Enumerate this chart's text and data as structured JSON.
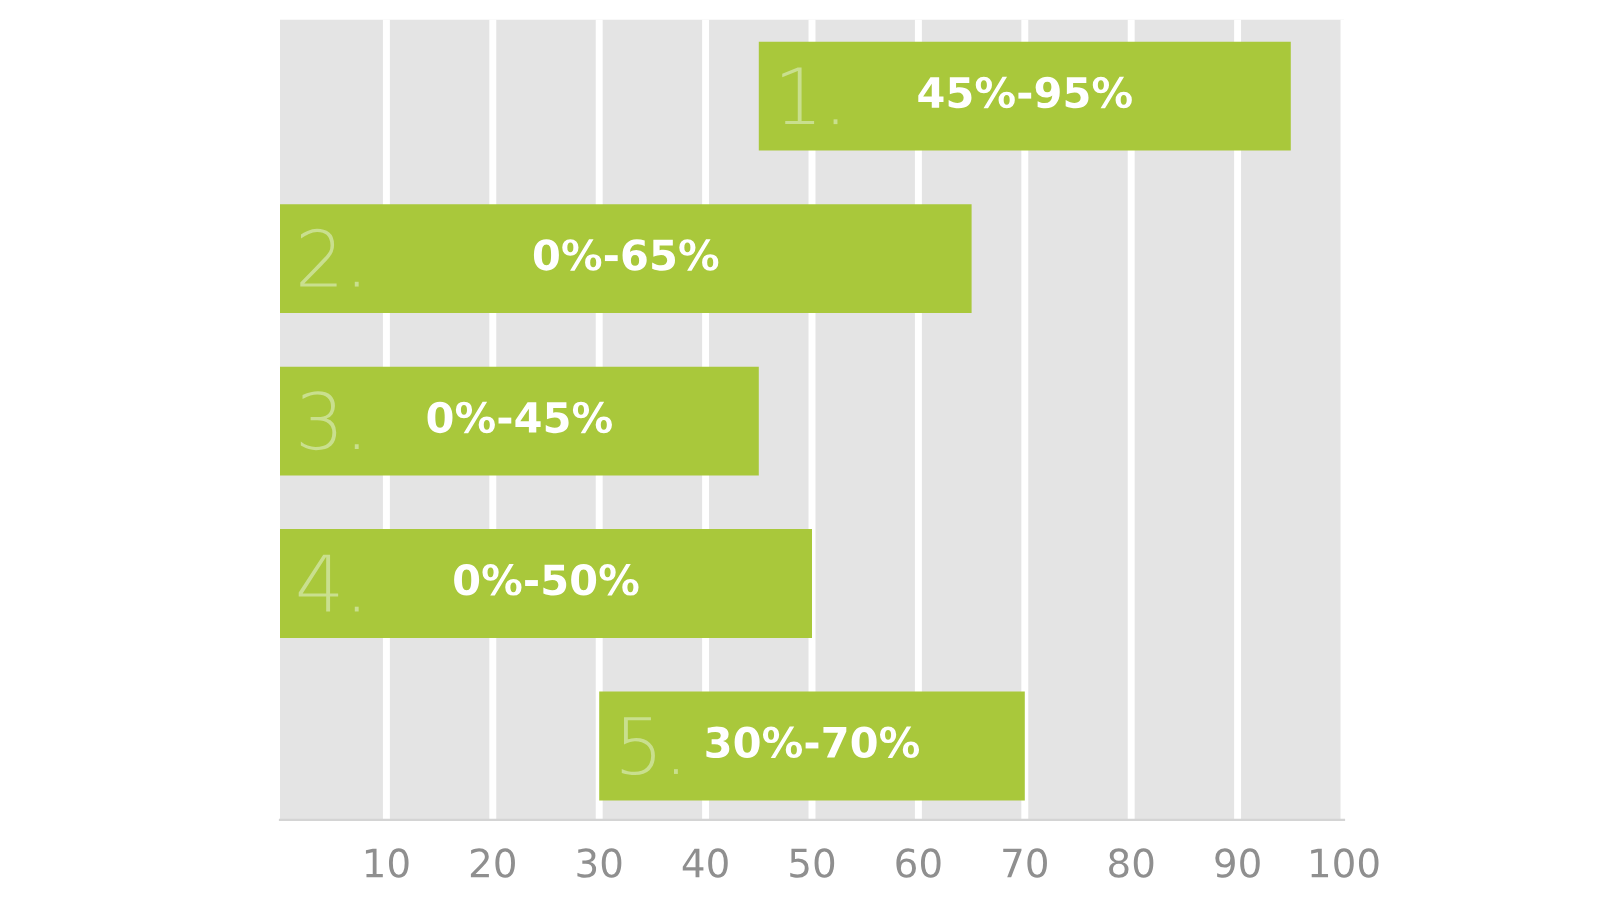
{
  "chart_data": {
    "type": "bar",
    "orientation": "horizontal",
    "categories": [
      "1.",
      "2.",
      "3.",
      "4.",
      "5."
    ],
    "base": [
      45,
      0,
      0,
      0,
      30
    ],
    "values": [
      50,
      65,
      45,
      50,
      40
    ],
    "annotations": [
      "45%-95%",
      "0%-65%",
      "0%-45%",
      "0%-50%",
      "30%-70%"
    ],
    "color": "#a9c83b",
    "xlim": [
      0,
      100
    ],
    "xticks": [
      10,
      20,
      30,
      40,
      50,
      60,
      70,
      80,
      90,
      100
    ],
    "grid": "x"
  }
}
